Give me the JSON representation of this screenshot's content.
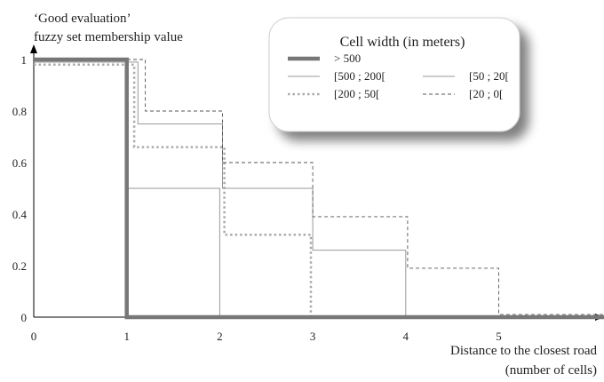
{
  "chart_data": {
    "type": "line",
    "step": true,
    "ylabel_line1": "‘Good evaluation’",
    "ylabel_line2": "fuzzy set membership value",
    "xlabel_line1": "Distance to the closest road",
    "xlabel_line2": "(number of cells)",
    "xlim": [
      0,
      6.2
    ],
    "ylim": [
      0,
      1
    ],
    "x_ticks": [
      "0",
      "1",
      "2",
      "3",
      "4",
      "5"
    ],
    "y_ticks": [
      "0",
      "0.2",
      "0.4",
      "0.6",
      "0.8",
      "1"
    ],
    "grid": false,
    "legend": {
      "title": "Cell width (in meters)",
      "placement": "top-right",
      "entries": [
        "> 500",
        "[500 ; 200[",
        "[200 ; 50[",
        "[50 ; 20[",
        "[20 ; 0["
      ]
    },
    "series": [
      {
        "name": "> 500",
        "color": "#777777",
        "style": "thick-solid",
        "x": [
          0,
          1,
          1,
          6.2
        ],
        "y": [
          1,
          1,
          0,
          0
        ]
      },
      {
        "name": "[500 ; 200[",
        "color": "#999999",
        "style": "thin-solid",
        "x": [
          0,
          1,
          1,
          2,
          2,
          6.2
        ],
        "y": [
          0.99,
          0.99,
          0.5,
          0.5,
          0,
          0
        ]
      },
      {
        "name": "[200 ; 50[",
        "color": "#aaaaaa",
        "style": "dotted",
        "x": [
          0,
          1.08,
          1.08,
          2.05,
          2.05,
          2.98,
          2.98,
          6.2
        ],
        "y": [
          0.98,
          0.98,
          0.66,
          0.66,
          0.32,
          0.32,
          0,
          0
        ]
      },
      {
        "name": "[50 ; 20[",
        "color": "#999999",
        "style": "thin-solid",
        "x": [
          0,
          1.12,
          1.12,
          2.03,
          2.03,
          3,
          3,
          4,
          4,
          6.2
        ],
        "y": [
          0.99,
          0.99,
          0.75,
          0.75,
          0.5,
          0.5,
          0.26,
          0.26,
          0,
          0
        ]
      },
      {
        "name": "[20 ; 0[",
        "color": "#555555",
        "style": "dashed",
        "x": [
          0,
          1.2,
          1.2,
          2.03,
          2.03,
          3,
          3,
          4.02,
          4.02,
          5,
          5,
          6.2
        ],
        "y": [
          1,
          1,
          0.8,
          0.8,
          0.6,
          0.6,
          0.39,
          0.39,
          0.19,
          0.19,
          0.01,
          0.01
        ]
      }
    ]
  }
}
